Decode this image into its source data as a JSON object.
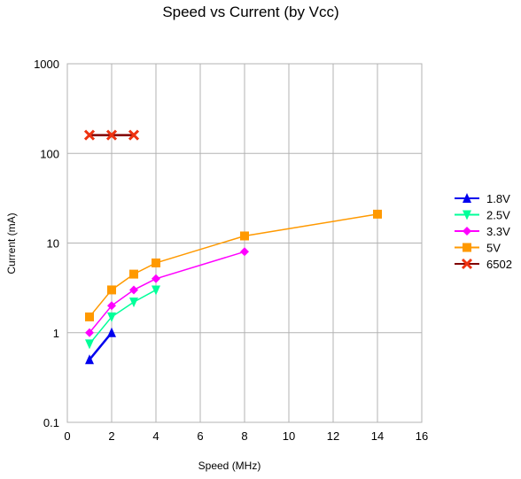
{
  "chart_data": {
    "type": "line",
    "title": "Speed vs Current (by Vcc)",
    "xlabel": "Speed (MHz)",
    "ylabel": "Current (mA)",
    "xlim": [
      0,
      16
    ],
    "ylim": [
      0.1,
      1000
    ],
    "yscale": "log",
    "x_ticks": [
      "0",
      "2",
      "4",
      "6",
      "8",
      "10",
      "12",
      "14",
      "16"
    ],
    "y_ticks": [
      "0.1",
      "1",
      "10",
      "100",
      "1000"
    ],
    "grid": true,
    "legend_position": "right",
    "series": [
      {
        "name": "1.8V",
        "color": "#0000ee",
        "marker": "triangle-up",
        "points": [
          [
            1,
            0.5
          ],
          [
            2,
            1.0
          ]
        ]
      },
      {
        "name": "2.5V",
        "color": "#00ff99",
        "marker": "triangle-down",
        "points": [
          [
            1,
            0.75
          ],
          [
            2,
            1.5
          ],
          [
            3,
            2.2
          ],
          [
            4,
            3.0
          ]
        ]
      },
      {
        "name": "3.3V",
        "color": "#ff00ff",
        "marker": "diamond",
        "points": [
          [
            1,
            1.0
          ],
          [
            2,
            2.0
          ],
          [
            3,
            3.0
          ],
          [
            4,
            4.0
          ],
          [
            8,
            8.0
          ]
        ]
      },
      {
        "name": "5V",
        "color": "#ff9900",
        "marker": "square",
        "points": [
          [
            1,
            1.5
          ],
          [
            2,
            3.0
          ],
          [
            3,
            4.5
          ],
          [
            4,
            6.0
          ],
          [
            8,
            12.0
          ],
          [
            14,
            21.0
          ]
        ]
      },
      {
        "name": "6502",
        "color": "#800000",
        "marker": "x",
        "marker_color": "#ee3311",
        "points": [
          [
            1,
            160
          ],
          [
            2,
            160
          ],
          [
            3,
            160
          ]
        ]
      }
    ]
  }
}
